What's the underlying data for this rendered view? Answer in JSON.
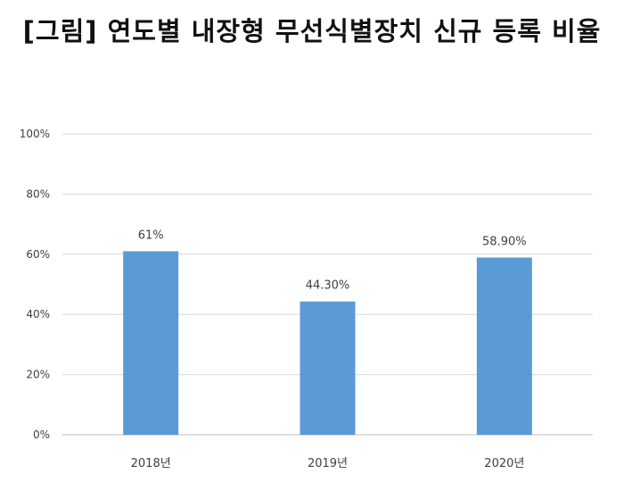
{
  "title": "[그림] 연도별 내장형 무선식별장치 신규 등록 비율",
  "colors": {
    "bar": "#5b9bd5",
    "grid": "#d9d9d9",
    "axis": "#bfbfbf",
    "text": "#404040",
    "title": "#111111"
  },
  "chart_data": {
    "type": "bar",
    "categories": [
      "2018년",
      "2019년",
      "2020년"
    ],
    "values": [
      61,
      44.3,
      58.9
    ],
    "data_labels": [
      "61%",
      "44.30%",
      "58.90%"
    ],
    "y_ticks": [
      "0%",
      "20%",
      "40%",
      "60%",
      "80%",
      "100%"
    ],
    "ylim": [
      0,
      100
    ],
    "xlabel": "",
    "ylabel": "",
    "grid": true,
    "legend": "none"
  }
}
